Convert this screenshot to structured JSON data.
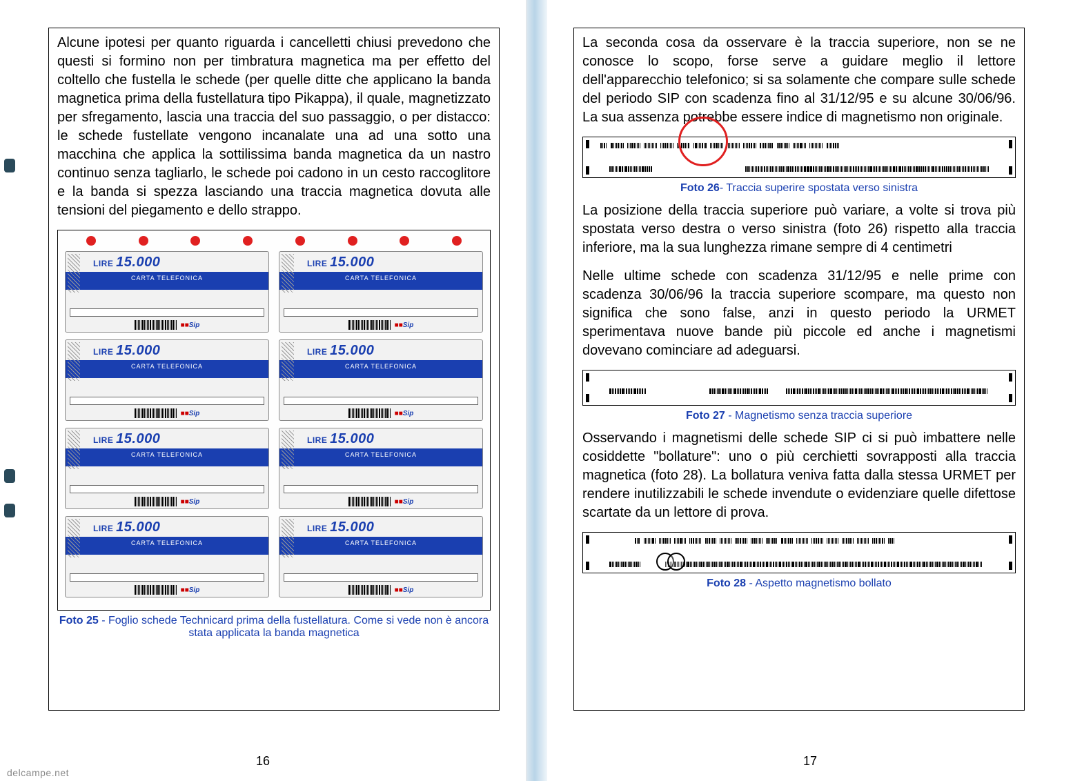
{
  "left": {
    "para1": "Alcune ipotesi per quanto riguarda i cancelletti chiusi prevedono che questi si formino non per timbratura magnetica ma per effetto del coltello che fustella le schede (per quelle ditte che applicano la banda magnetica prima della fustellatura tipo Pikappa), il quale, magnetizzato per sfregamento, lascia una traccia del suo passaggio, o per distacco: le schede fustellate vengono incanalate una ad una sotto una macchina che applica la sottilissima banda magnetica da un nastro continuo senza tagliarlo, le schede poi cadono in un cesto raccoglitore e la banda si spezza lasciando una traccia magnetica dovuta alle tensioni del piegamento e dello strappo.",
    "card": {
      "lire_label": "LIRE",
      "amount": "15.000",
      "title": "CARTA TELEFONICA",
      "sip1": "■■",
      "sip2": "Sip"
    },
    "caption25_label": "Foto 25",
    "caption25_text": " - Foglio schede Technicard prima della fustellatura. Come si vede non è ancora stata applicata la banda magnetica",
    "pagenum": "16"
  },
  "right": {
    "para1": "La seconda cosa da osservare è la traccia superiore, non se ne conosce lo scopo, forse serve a guidare meglio il lettore dell'apparecchio telefonico; si sa solamente che compare sulle schede del periodo SIP con scadenza fino al 31/12/95 e su alcune 30/06/96. La sua assenza potrebbe essere indice di magnetismo non originale.",
    "caption26_label": "Foto 26",
    "caption26_text": "-  Traccia superire spostata verso sinistra",
    "para2": "La posizione della traccia superiore può variare, a volte si trova più spostata verso destra o verso sinistra (foto 26) rispetto alla traccia inferiore, ma la sua lunghezza rimane sempre di 4 centimetri",
    "para3": "Nelle ultime schede con scadenza 31/12/95 e nelle prime con scadenza 30/06/96 la traccia superiore scompare, ma questo non significa che sono false, anzi in questo periodo la URMET sperimentava nuove bande più piccole ed anche i magnetismi dovevano cominciare ad adeguarsi.",
    "caption27_label": "Foto 27",
    "caption27_text": " - Magnetismo senza traccia superiore",
    "para4": "Osservando i magnetismi delle schede SIP ci si può imbattere nelle cosiddette \"bollature\": uno o più cerchietti sovrapposti alla traccia magnetica (foto 28). La bollatura veniva fatta dalla stessa URMET per rendere inutilizzabili le schede invendute o evidenziare quelle difettose scartate da un lettore di prova.",
    "caption28_label": "Foto 28",
    "caption28_text": " -  Aspetto magnetismo bollato",
    "pagenum": "17"
  },
  "watermark": "delcampe.net",
  "colors": {
    "blue": "#1a3fb0",
    "red": "#e02020",
    "text": "#000000"
  }
}
